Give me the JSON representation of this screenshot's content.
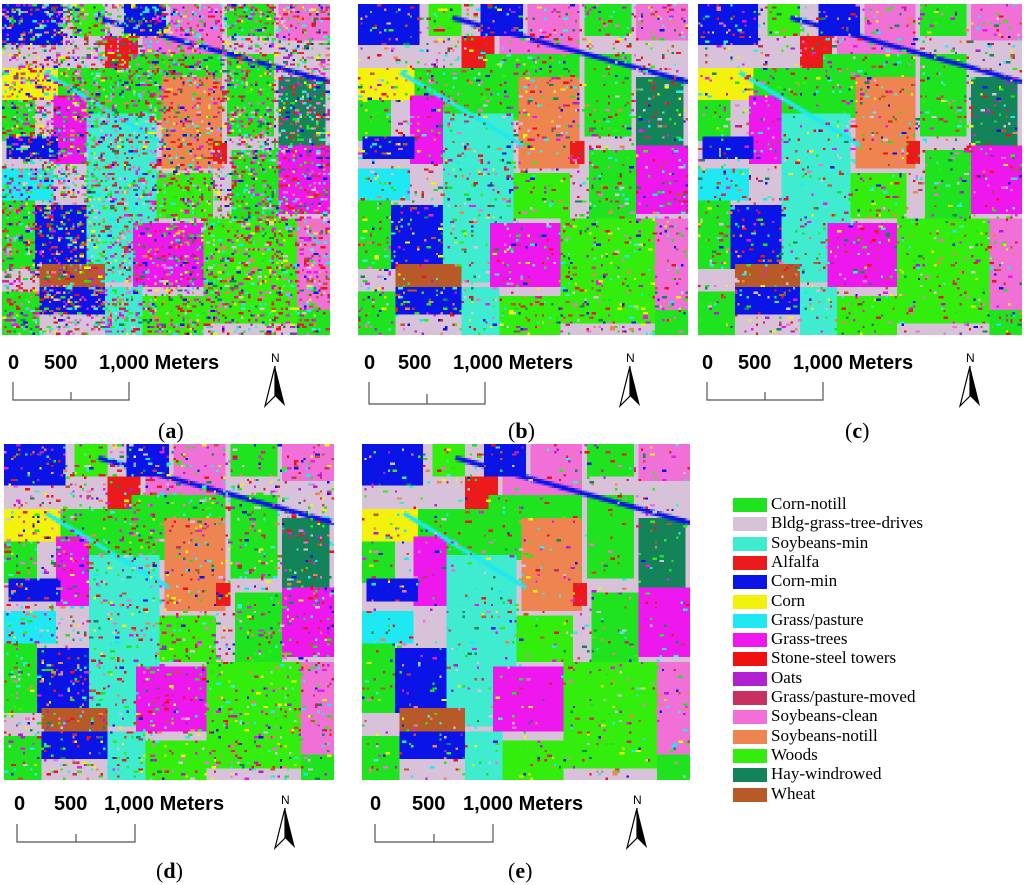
{
  "panels": [
    {
      "id": "a",
      "caption": "a",
      "scale": {
        "zero": "0",
        "mid": "500",
        "end": "1,000 Meters"
      },
      "north": "N",
      "noise": 0.55
    },
    {
      "id": "b",
      "caption": "b",
      "scale": {
        "zero": "0",
        "mid": "500",
        "end": "1,000 Meters"
      },
      "north": "N",
      "noise": 0.18
    },
    {
      "id": "c",
      "caption": "c",
      "scale": {
        "zero": "0",
        "mid": "500",
        "end": "1,000 Meters"
      },
      "north": "N",
      "noise": 0.14
    },
    {
      "id": "d",
      "caption": "d",
      "scale": {
        "zero": "0",
        "mid": "500",
        "end": "1,000 Meters"
      },
      "north": "N",
      "noise": 0.2
    },
    {
      "id": "e",
      "caption": "e",
      "scale": {
        "zero": "0",
        "mid": "500",
        "end": "1,000 Meters"
      },
      "north": "N",
      "noise": 0.08
    }
  ],
  "legend": [
    {
      "label": "Corn-notill",
      "color": "#1ee31e"
    },
    {
      "label": "Bldg-grass-tree-drives",
      "color": "#d8c2da"
    },
    {
      "label": "Soybeans-min",
      "color": "#3feccf"
    },
    {
      "label": "Alfalfa",
      "color": "#ec1a1a"
    },
    {
      "label": "Corn-min",
      "color": "#0a14e6"
    },
    {
      "label": "Corn",
      "color": "#f2f20d"
    },
    {
      "label": "Grass/pasture",
      "color": "#1ee8f2"
    },
    {
      "label": "Grass-trees",
      "color": "#ee18ee"
    },
    {
      "label": "Stone-steel towers",
      "color": "#f01010"
    },
    {
      "label": "Oats",
      "color": "#b020d0"
    },
    {
      "label": "Grass/pasture-moved",
      "color": "#c83060"
    },
    {
      "label": "Soybeans-clean",
      "color": "#f070d8"
    },
    {
      "label": "Soybeans-notill",
      "color": "#ee8450"
    },
    {
      "label": "Woods",
      "color": "#33ee0c"
    },
    {
      "label": "Hay-windrowed",
      "color": "#13845a"
    },
    {
      "label": "Wheat",
      "color": "#b85a28"
    }
  ]
}
